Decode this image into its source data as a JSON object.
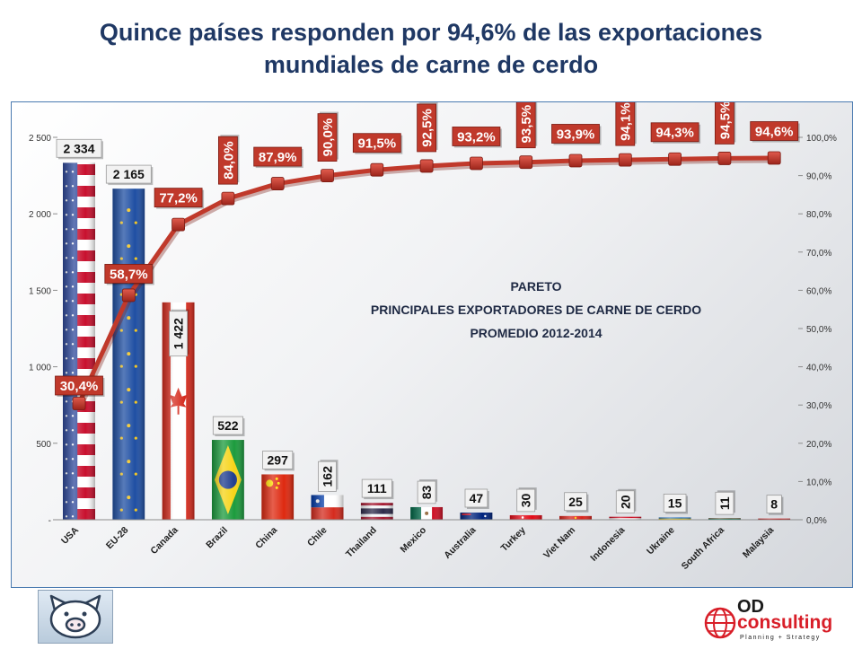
{
  "title_line1": "Quince países responden por 94,6% de las exportaciones",
  "title_line2": "mundiales de carne de cerdo",
  "chart_data": {
    "type": "bar",
    "subtitle_lines": [
      "PARETO",
      "PRINCIPALES EXPORTADORES DE CARNE DE CERDO",
      "PROMEDIO 2012-2014"
    ],
    "categories": [
      "USA",
      "EU-28",
      "Canada",
      "Brazil",
      "China",
      "Chile",
      "Thailand",
      "Mexico",
      "Australia",
      "Turkey",
      "Viet Nam",
      "Indonesia",
      "Ukraine",
      "South Africa",
      "Malaysia"
    ],
    "series": [
      {
        "axis": "left",
        "kind": "bar",
        "values": [
          2334,
          2165,
          1422,
          522,
          297,
          162,
          111,
          83,
          47,
          30,
          25,
          20,
          15,
          11,
          8
        ],
        "labels": [
          "2 334",
          "2 165",
          "1 422",
          "522",
          "297",
          "162",
          "111",
          "83",
          "47",
          "30",
          "25",
          "20",
          "15",
          "11",
          "8"
        ]
      },
      {
        "axis": "right",
        "kind": "line",
        "values": [
          30.4,
          58.7,
          77.2,
          84.0,
          87.9,
          90.0,
          91.5,
          92.5,
          93.2,
          93.5,
          93.9,
          94.1,
          94.3,
          94.5,
          94.6
        ],
        "labels": [
          "30,4%",
          "58,7%",
          "77,2%",
          "84,0%",
          "87,9%",
          "90,0%",
          "91,5%",
          "92,5%",
          "93,2%",
          "93,5%",
          "93,9%",
          "94,1%",
          "94,3%",
          "94,5%",
          "94,6%"
        ]
      }
    ],
    "y_left": {
      "min": 0,
      "max": 2500,
      "ticks": [
        0,
        500,
        1000,
        1500,
        2000,
        2500
      ],
      "tick_labels": [
        "-",
        "500",
        "1 000",
        "1 500",
        "2 000",
        "2 500"
      ]
    },
    "y_right": {
      "min": 0,
      "max": 100,
      "ticks": [
        0,
        10,
        20,
        30,
        40,
        50,
        60,
        70,
        80,
        90,
        100
      ],
      "tick_labels": [
        "0,0%",
        "10,0%",
        "20,0%",
        "30,0%",
        "40,0%",
        "50,0%",
        "60,0%",
        "70,0%",
        "80,0%",
        "90,0%",
        "100,0%"
      ]
    },
    "grid": false,
    "legend": "none",
    "colors": {
      "line": "#c0392b",
      "line_marker": "#c0392b",
      "pct_label_bg": "#c0392b",
      "value_label_bg": "#f2f2f2",
      "axis_text": "#333333"
    },
    "bar_fill_icons": [
      "flag-usa",
      "flag-eu",
      "flag-canada",
      "flag-brazil",
      "flag-china",
      "flag-chile",
      "flag-thailand",
      "flag-mexico",
      "flag-australia",
      "flag-turkey",
      "flag-vietnam",
      "flag-indonesia",
      "flag-ukraine",
      "flag-south-africa",
      "flag-malaysia"
    ]
  },
  "logos": {
    "pig_icon": "pig-face-icon",
    "brand_prefix": "OD",
    "brand_name": "consulting",
    "brand_tagline": "Planning + Strategy",
    "brand_colors": {
      "red": "#d81e28",
      "dark": "#1a1a1a"
    }
  }
}
